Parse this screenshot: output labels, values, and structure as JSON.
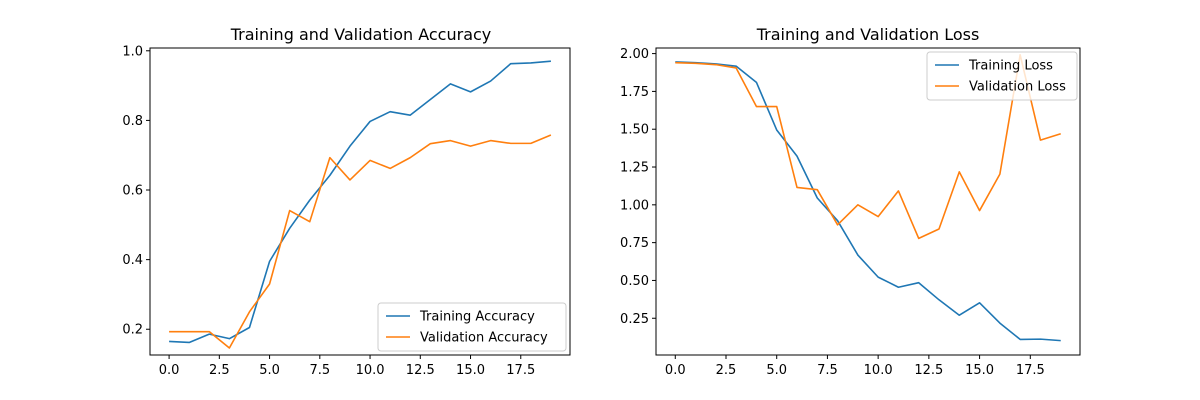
{
  "chart_data": [
    {
      "type": "line",
      "title": "Training and Validation Accuracy",
      "xlabel": "",
      "ylabel": "",
      "xlim": [
        -0.95,
        19.95
      ],
      "ylim": [
        0.126,
        1.008
      ],
      "xticks": [
        "0.0",
        "2.5",
        "5.0",
        "7.5",
        "10.0",
        "12.5",
        "15.0",
        "17.5"
      ],
      "xtick_values": [
        0,
        2.5,
        5,
        7.5,
        10,
        12.5,
        15,
        17.5
      ],
      "yticks": [
        "0.2",
        "0.4",
        "0.6",
        "0.8",
        "1.0"
      ],
      "ytick_values": [
        0.2,
        0.4,
        0.6,
        0.8,
        1.0
      ],
      "grid": false,
      "legend_position": "lower-right",
      "x": [
        0,
        1,
        2,
        3,
        4,
        5,
        6,
        7,
        8,
        9,
        10,
        11,
        12,
        13,
        14,
        15,
        16,
        17,
        18,
        19
      ],
      "series": [
        {
          "name": "Training Accuracy",
          "color": "#1f77b4",
          "values": [
            0.165,
            0.162,
            0.186,
            0.173,
            0.205,
            0.395,
            0.49,
            0.571,
            0.642,
            0.726,
            0.797,
            0.825,
            0.815,
            0.86,
            0.905,
            0.882,
            0.913,
            0.963,
            0.965,
            0.97
          ]
        },
        {
          "name": "Validation Accuracy",
          "color": "#ff7f0e",
          "values": [
            0.193,
            0.193,
            0.193,
            0.146,
            0.25,
            0.33,
            0.541,
            0.509,
            0.693,
            0.629,
            0.685,
            0.662,
            0.693,
            0.733,
            0.742,
            0.726,
            0.742,
            0.734,
            0.734,
            0.758
          ]
        }
      ]
    },
    {
      "type": "line",
      "title": "Training and Validation Loss",
      "xlabel": "",
      "ylabel": "",
      "xlim": [
        -0.95,
        19.95
      ],
      "ylim": [
        0.007,
        2.037
      ],
      "xticks": [
        "0.0",
        "2.5",
        "5.0",
        "7.5",
        "10.0",
        "12.5",
        "15.0",
        "17.5"
      ],
      "xtick_values": [
        0,
        2.5,
        5,
        7.5,
        10,
        12.5,
        15,
        17.5
      ],
      "yticks": [
        "0.25",
        "0.50",
        "0.75",
        "1.00",
        "1.25",
        "1.50",
        "1.75",
        "2.00"
      ],
      "ytick_values": [
        0.25,
        0.5,
        0.75,
        1.0,
        1.25,
        1.5,
        1.75,
        2.0
      ],
      "grid": false,
      "legend_position": "upper-right",
      "x": [
        0,
        1,
        2,
        3,
        4,
        5,
        6,
        7,
        8,
        9,
        10,
        11,
        12,
        13,
        14,
        15,
        16,
        17,
        18,
        19
      ],
      "series": [
        {
          "name": "Training Loss",
          "color": "#1f77b4",
          "values": [
            1.945,
            1.94,
            1.932,
            1.917,
            1.81,
            1.495,
            1.322,
            1.045,
            0.895,
            0.668,
            0.522,
            0.455,
            0.485,
            0.372,
            0.27,
            0.352,
            0.218,
            0.11,
            0.112,
            0.102
          ]
        },
        {
          "name": "Validation Loss",
          "color": "#ff7f0e",
          "values": [
            1.94,
            1.936,
            1.927,
            1.905,
            1.65,
            1.65,
            1.115,
            1.1,
            0.868,
            1.0,
            0.922,
            1.092,
            0.778,
            0.84,
            1.218,
            0.962,
            1.203,
            1.992,
            1.428,
            1.47
          ]
        }
      ]
    }
  ]
}
